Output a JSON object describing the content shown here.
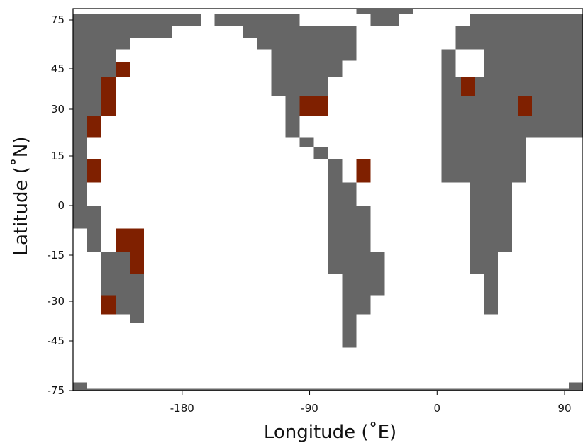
{
  "chart_data": {
    "type": "heatmap",
    "xlabel": "Longitude (˚E)",
    "ylabel": "Latitude (˚N)",
    "xlim": [
      -257,
      103
    ],
    "ylim": [
      -77,
      81
    ],
    "xticks": [
      {
        "value": -180,
        "label": "-180"
      },
      {
        "value": -90,
        "label": "-90"
      },
      {
        "value": 0,
        "label": "0"
      },
      {
        "value": 90,
        "label": "90"
      }
    ],
    "yticks": [
      {
        "value": 75,
        "label": "75"
      },
      {
        "value": 45,
        "label": "45"
      },
      {
        "value": 30,
        "label": "30"
      },
      {
        "value": 15,
        "label": "15"
      },
      {
        "value": 0,
        "label": "0"
      },
      {
        "value": -15,
        "label": "-15"
      },
      {
        "value": -30,
        "label": "-30"
      },
      {
        "value": -45,
        "label": "-45"
      },
      {
        "value": -75,
        "label": "-75"
      }
    ],
    "colors": {
      "land": "#666666",
      "highlight": "#7f2000",
      "ocean": "#ffffff",
      "frame": "#000000"
    },
    "land_cells": [
      [
        -257,
        -247,
        71,
        78
      ],
      [
        -247,
        -217,
        71,
        78
      ],
      [
        -217,
        -197,
        71,
        78
      ],
      [
        -197,
        -167,
        71,
        78
      ],
      [
        -257,
        -187,
        64,
        71
      ],
      [
        -257,
        -217,
        57,
        64
      ],
      [
        -257,
        -227,
        50,
        57
      ],
      [
        -257,
        -227,
        42,
        50
      ],
      [
        -257,
        -227,
        35,
        42
      ],
      [
        -257,
        -237,
        28,
        35
      ],
      [
        -257,
        -237,
        21,
        28
      ],
      [
        -257,
        -247,
        14,
        21
      ],
      [
        -257,
        -247,
        7,
        14
      ],
      [
        -257,
        -247,
        0,
        7
      ],
      [
        -257,
        -237,
        -7,
        0
      ],
      [
        -247,
        -237,
        -14,
        -7
      ],
      [
        -237,
        -207,
        -21,
        -14
      ],
      [
        -237,
        -207,
        -28,
        -21
      ],
      [
        -237,
        -207,
        -35,
        -28
      ],
      [
        -217,
        -207,
        -38,
        -35
      ],
      [
        -157,
        -97,
        71,
        78
      ],
      [
        -137,
        -57,
        64,
        71
      ],
      [
        -127,
        -57,
        57,
        64
      ],
      [
        -117,
        -57,
        50,
        57
      ],
      [
        -117,
        -67,
        42,
        50
      ],
      [
        -117,
        -77,
        35,
        42
      ],
      [
        -107,
        -77,
        28,
        35
      ],
      [
        -107,
        -97,
        21,
        28
      ],
      [
        -97,
        -87,
        18,
        21
      ],
      [
        -87,
        -77,
        14,
        18
      ],
      [
        -77,
        -67,
        7,
        14
      ],
      [
        -77,
        -57,
        0,
        7
      ],
      [
        -77,
        -47,
        -7,
        0
      ],
      [
        -77,
        -47,
        -14,
        -7
      ],
      [
        -77,
        -37,
        -21,
        -14
      ],
      [
        -67,
        -37,
        -28,
        -21
      ],
      [
        -67,
        -47,
        -35,
        -28
      ],
      [
        -67,
        -57,
        -42,
        -35
      ],
      [
        -67,
        -57,
        -49,
        -42
      ],
      [
        -57,
        -17,
        78,
        81
      ],
      [
        -47,
        -27,
        71,
        78
      ],
      [
        3,
        13,
        50,
        57
      ],
      [
        3,
        13,
        42,
        50
      ],
      [
        3,
        103,
        35,
        42
      ],
      [
        3,
        103,
        28,
        35
      ],
      [
        3,
        73,
        21,
        28
      ],
      [
        3,
        63,
        14,
        21
      ],
      [
        3,
        63,
        7,
        14
      ],
      [
        23,
        53,
        0,
        7
      ],
      [
        23,
        53,
        -7,
        0
      ],
      [
        23,
        53,
        -14,
        -7
      ],
      [
        23,
        43,
        -21,
        -14
      ],
      [
        33,
        43,
        -28,
        -21
      ],
      [
        33,
        43,
        -35,
        -28
      ],
      [
        23,
        103,
        71,
        78
      ],
      [
        13,
        103,
        64,
        71
      ],
      [
        13,
        103,
        57,
        64
      ],
      [
        33,
        103,
        50,
        57
      ],
      [
        33,
        103,
        42,
        50
      ],
      [
        73,
        83,
        21,
        28
      ],
      [
        83,
        103,
        21,
        28
      ],
      [
        -257,
        -247,
        -74,
        -70
      ],
      [
        -257,
        103,
        -77,
        -74
      ],
      [
        93,
        103,
        -74,
        -70
      ]
    ],
    "highlight_cells": [
      [
        -227,
        -217,
        42,
        49
      ],
      [
        -237,
        -227,
        35,
        42
      ],
      [
        -237,
        -227,
        28,
        35
      ],
      [
        -247,
        -237,
        21,
        28
      ],
      [
        -247,
        -237,
        7,
        14
      ],
      [
        -227,
        -207,
        -14,
        -7
      ],
      [
        -217,
        -207,
        -21,
        -14
      ],
      [
        -237,
        -227,
        -35,
        -28
      ],
      [
        -97,
        -77,
        28,
        35
      ],
      [
        -57,
        -47,
        7,
        14
      ],
      [
        17,
        27,
        35,
        42
      ],
      [
        57,
        67,
        28,
        35
      ]
    ]
  }
}
